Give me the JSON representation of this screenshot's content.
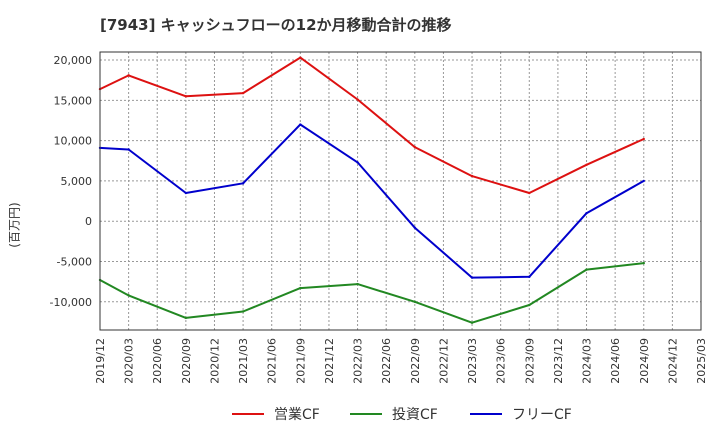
{
  "chart_data": {
    "type": "line",
    "title": "[7943]  キャッシュフローの12か月移動合計の推移",
    "ylabel": "(百万円)",
    "xlabel": "",
    "ylim": [
      -13500,
      21000
    ],
    "yticks": [
      20000,
      15000,
      10000,
      5000,
      0,
      -5000,
      -10000
    ],
    "ytick_labels": [
      "20,000",
      "15,000",
      "10,000",
      "5,000",
      "0",
      "-5,000",
      "-10,000"
    ],
    "categories": [
      "2019/12",
      "2020/03",
      "2020/06",
      "2020/09",
      "2020/12",
      "2021/03",
      "2021/06",
      "2021/09",
      "2021/12",
      "2022/03",
      "2022/06",
      "2022/09",
      "2022/12",
      "2023/03",
      "2023/06",
      "2023/09",
      "2023/12",
      "2024/03",
      "2024/06",
      "2024/09",
      "2024/12",
      "2025/03"
    ],
    "series": [
      {
        "name": "営業CF",
        "color": "#dd1111",
        "values": [
          16400,
          18100,
          null,
          15500,
          null,
          15900,
          null,
          20300,
          null,
          15100,
          null,
          9200,
          null,
          5600,
          null,
          3500,
          null,
          7000,
          null,
          10200,
          null,
          null
        ]
      },
      {
        "name": "投資CF",
        "color": "#228822",
        "values": [
          -7300,
          -9200,
          null,
          -12000,
          null,
          -11200,
          null,
          -8300,
          null,
          -7800,
          null,
          -10000,
          null,
          -12600,
          null,
          -10400,
          null,
          -6000,
          null,
          -5200,
          null,
          null
        ]
      },
      {
        "name": "フリーCF",
        "color": "#0000cc",
        "values": [
          9100,
          8900,
          null,
          3500,
          null,
          4700,
          null,
          12000,
          null,
          7300,
          null,
          -800,
          null,
          -7000,
          null,
          -6900,
          null,
          1000,
          null,
          5000,
          null,
          null
        ]
      }
    ],
    "grid": true,
    "legend_position": "bottom"
  }
}
